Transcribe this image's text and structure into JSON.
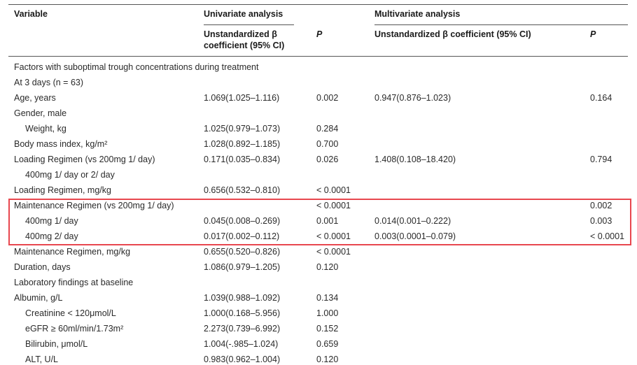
{
  "header": {
    "variable": "Variable",
    "univariate": "Univariate analysis",
    "multivariate": "Multivariate analysis",
    "uni_coef": "Unstandardized β coefficient (95% CI)",
    "uni_p": "P",
    "multi_coef": "Unstandardized β coefficient (95% CI)",
    "multi_p": "P"
  },
  "highlight_color": "#e8474f",
  "rows": [
    {
      "label": "Factors with suboptimal trough concentrations during treatment",
      "indent": false,
      "uni": "",
      "uni_p": "",
      "multi": "",
      "multi_p": ""
    },
    {
      "label": "At 3 days (n = 63)",
      "indent": false,
      "uni": "",
      "uni_p": "",
      "multi": "",
      "multi_p": ""
    },
    {
      "label": "Age, years",
      "indent": false,
      "uni": "1.069(1.025–1.116)",
      "uni_p": "0.002",
      "multi": "0.947(0.876–1.023)",
      "multi_p": "0.164"
    },
    {
      "label": "Gender, male",
      "indent": false,
      "uni": "",
      "uni_p": "",
      "multi": "",
      "multi_p": ""
    },
    {
      "label": "Weight, kg",
      "indent": true,
      "uni": "1.025(0.979–1.073)",
      "uni_p": "0.284",
      "multi": "",
      "multi_p": ""
    },
    {
      "label": "Body mass index, kg/m²",
      "indent": false,
      "uni": "1.028(0.892–1.185)",
      "uni_p": "0.700",
      "multi": "",
      "multi_p": ""
    },
    {
      "label": "Loading Regimen (vs 200mg 1/ day)",
      "indent": false,
      "uni": "0.171(0.035–0.834)",
      "uni_p": "0.026",
      "multi": "1.408(0.108–18.420)",
      "multi_p": "0.794"
    },
    {
      "label": "400mg 1/ day or 2/ day",
      "indent": true,
      "uni": "",
      "uni_p": "",
      "multi": "",
      "multi_p": ""
    },
    {
      "label": "Loading Regimen, mg/kg",
      "indent": false,
      "uni": "0.656(0.532–0.810)",
      "uni_p": "< 0.0001",
      "multi": "",
      "multi_p": ""
    },
    {
      "label": "Maintenance Regimen (vs 200mg 1/ day)",
      "indent": false,
      "uni": "",
      "uni_p": "< 0.0001",
      "multi": "",
      "multi_p": "0.002"
    },
    {
      "label": "400mg 1/ day",
      "indent": true,
      "uni": "0.045(0.008–0.269)",
      "uni_p": "0.001",
      "multi": "0.014(0.001–0.222)",
      "multi_p": "0.003"
    },
    {
      "label": "400mg 2/ day",
      "indent": true,
      "uni": "0.017(0.002–0.112)",
      "uni_p": "< 0.0001",
      "multi": "0.003(0.0001–0.079)",
      "multi_p": "< 0.0001"
    },
    {
      "label": "Maintenance Regimen, mg/kg",
      "indent": false,
      "uni": "0.655(0.520–0.826)",
      "uni_p": "< 0.0001",
      "multi": "",
      "multi_p": ""
    },
    {
      "label": "Duration, days",
      "indent": false,
      "uni": "1.086(0.979–1.205)",
      "uni_p": "0.120",
      "multi": "",
      "multi_p": ""
    },
    {
      "label": "Laboratory findings at baseline",
      "indent": false,
      "uni": "",
      "uni_p": "",
      "multi": "",
      "multi_p": ""
    },
    {
      "label": "Albumin, g/L",
      "indent": false,
      "uni": "1.039(0.988–1.092)",
      "uni_p": "0.134",
      "multi": "",
      "multi_p": ""
    },
    {
      "label": "Creatinine < 120μmol/L",
      "indent": true,
      "uni": "1.000(0.168–5.956)",
      "uni_p": "1.000",
      "multi": "",
      "multi_p": ""
    },
    {
      "label": "eGFR ≥ 60ml/min/1.73m²",
      "indent": true,
      "uni": "2.273(0.739–6.992)",
      "uni_p": "0.152",
      "multi": "",
      "multi_p": ""
    },
    {
      "label": "Bilirubin, μmol/L",
      "indent": true,
      "uni": "1.004(-.985–1.024)",
      "uni_p": "0.659",
      "multi": "",
      "multi_p": ""
    },
    {
      "label": "ALT, U/L",
      "indent": true,
      "uni": "0.983(0.962–1.004)",
      "uni_p": "0.120",
      "multi": "",
      "multi_p": ""
    }
  ]
}
